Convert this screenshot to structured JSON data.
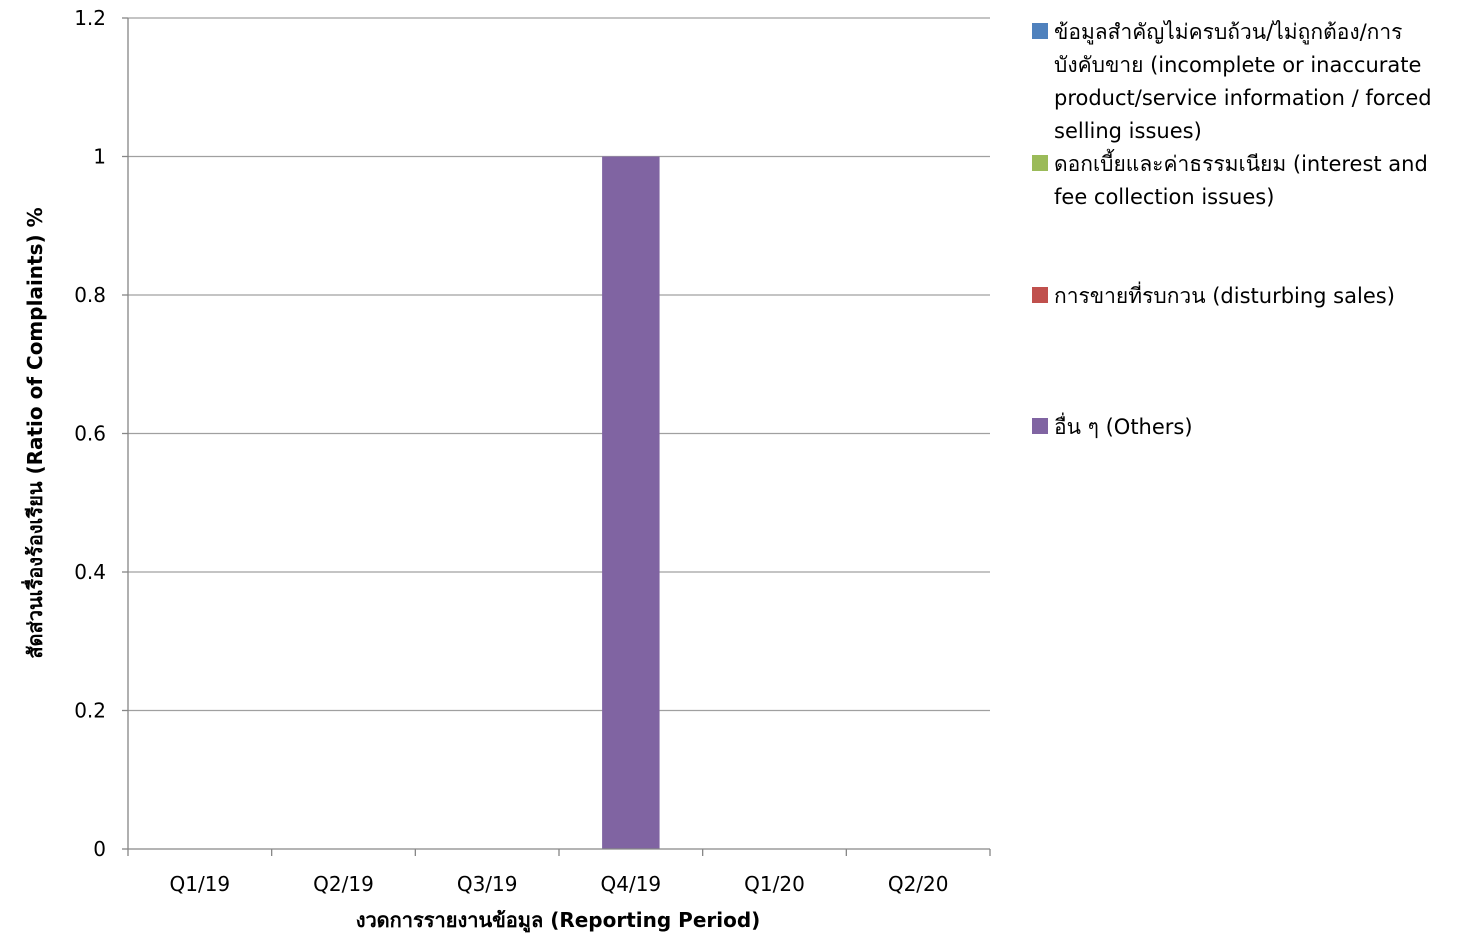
{
  "chart_data": {
    "type": "bar",
    "categories": [
      "Q1/19",
      "Q2/19",
      "Q3/19",
      "Q4/19",
      "Q1/20",
      "Q2/20"
    ],
    "series": [
      {
        "name": "ข้อมูลสำคัญไม่ครบถ้วน/ไม่ถูกต้อง/การบังคับขาย (incomplete or inaccurate product/service information / forced selling issues)",
        "legend_lines": [
          "ข้อมูลสำคัญไม่ครบถ้วน/ไม่ถูกต้อง/การ",
          "บังคับขาย (incomplete or inaccurate",
          "product/service information / forced",
          "selling issues)"
        ],
        "color": "#4F81BD",
        "values": [
          0,
          0,
          0,
          0,
          0,
          0
        ]
      },
      {
        "name": "ดอกเบี้ยและค่าธรรมเนียม (interest and fee collection issues)",
        "legend_lines": [
          "ดอกเบี้ยและค่าธรรมเนียม (interest and",
          "fee collection issues)"
        ],
        "color": "#9BBB59",
        "values": [
          0,
          0,
          0,
          0,
          0,
          0
        ]
      },
      {
        "name": "การขายที่รบกวน (disturbing sales)",
        "legend_lines": [
          "การขายที่รบกวน (disturbing sales)"
        ],
        "color": "#C0504D",
        "values": [
          0,
          0,
          0,
          0,
          0,
          0
        ]
      },
      {
        "name": "อื่น ๆ (Others)",
        "legend_lines": [
          "อื่น ๆ (Others)"
        ],
        "color": "#8064A2",
        "values": [
          0,
          0,
          0,
          1,
          0,
          0
        ]
      }
    ],
    "stacked": true,
    "xlabel": "งวดการรายงานข้อมูล (Reporting Period)",
    "ylabel": "สัดส่วนเรื่องร้องเรียน (Ratio of Complaints) %",
    "ylim": [
      0,
      1.2
    ],
    "yticks": [
      "0",
      "0.2",
      "0.4",
      "0.6",
      "0.8",
      "1",
      "1.2"
    ],
    "grid": true,
    "gridline_color": "#A0A0A0",
    "legend_position": "right"
  }
}
